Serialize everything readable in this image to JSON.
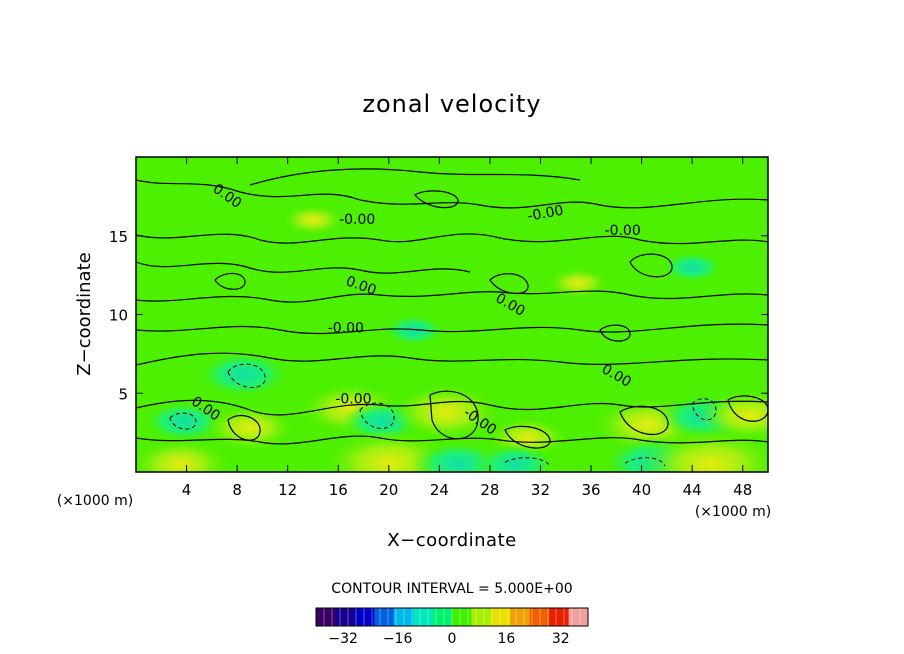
{
  "chart_data": {
    "type": "heatmap",
    "title": "zonal velocity",
    "xlabel": "X−coordinate",
    "ylabel": "Z−coordinate",
    "x_unit_left": "(×1000 m)",
    "x_unit_right": "(×1000 m)",
    "xlim": [
      0,
      50
    ],
    "ylim": [
      0,
      20
    ],
    "x_ticks": [
      4,
      8,
      12,
      16,
      20,
      24,
      28,
      32,
      36,
      40,
      44,
      48
    ],
    "y_ticks": [
      5,
      10,
      15
    ],
    "contour_interval_text": "CONTOUR INTERVAL = 5.000E+00",
    "contour_labels": [
      {
        "text": "0.00",
        "x": 7.2,
        "y": 17.5,
        "angle": 35
      },
      {
        "text": "-0.00",
        "x": 17.5,
        "y": 16.0,
        "angle": 0
      },
      {
        "text": "-0.00",
        "x": 32.4,
        "y": 16.4,
        "angle": -10
      },
      {
        "text": "-0.00",
        "x": 38.5,
        "y": 15.3,
        "angle": 0
      },
      {
        "text": "0.00",
        "x": 17.8,
        "y": 11.8,
        "angle": 20
      },
      {
        "text": "0.00",
        "x": 29.6,
        "y": 10.6,
        "angle": 30
      },
      {
        "text": "-0.00",
        "x": 16.6,
        "y": 9.1,
        "angle": 0
      },
      {
        "text": "0.00",
        "x": 38.0,
        "y": 6.1,
        "angle": 30
      },
      {
        "text": "-0.00",
        "x": 17.2,
        "y": 4.6,
        "angle": 0
      },
      {
        "text": "0.00",
        "x": 5.5,
        "y": 4.0,
        "angle": 35
      },
      {
        "text": "-0.00",
        "x": 27.2,
        "y": 3.2,
        "angle": 35
      }
    ],
    "features": [
      {
        "x": 8.5,
        "y": 6.2,
        "value": -5
      },
      {
        "x": 3.8,
        "y": 3.2,
        "value": -4
      },
      {
        "x": 9.0,
        "y": 2.8,
        "value": 5
      },
      {
        "x": 17.0,
        "y": 4.0,
        "value": 6
      },
      {
        "x": 19.5,
        "y": 3.2,
        "value": -4
      },
      {
        "x": 24.5,
        "y": 3.8,
        "value": 7
      },
      {
        "x": 31.0,
        "y": 2.2,
        "value": 4
      },
      {
        "x": 40.5,
        "y": 3.0,
        "value": 7
      },
      {
        "x": 45.0,
        "y": 3.5,
        "value": -5
      },
      {
        "x": 48.5,
        "y": 3.6,
        "value": 6
      },
      {
        "x": 3.5,
        "y": 0.5,
        "value": 6
      },
      {
        "x": 20.0,
        "y": 0.6,
        "value": 9
      },
      {
        "x": 25.5,
        "y": 0.5,
        "value": -5
      },
      {
        "x": 30.0,
        "y": 0.5,
        "value": -4
      },
      {
        "x": 41.0,
        "y": 0.6,
        "value": -6
      },
      {
        "x": 45.5,
        "y": 0.5,
        "value": 10
      },
      {
        "x": 22.0,
        "y": 9.0,
        "value": -2
      },
      {
        "x": 14.0,
        "y": 16.0,
        "value": 2
      },
      {
        "x": 35.0,
        "y": 12.0,
        "value": 2
      },
      {
        "x": 44.0,
        "y": 13.0,
        "value": -2
      }
    ],
    "colorbar": {
      "min": -40,
      "max": 40,
      "ticks": [
        -32,
        -16,
        0,
        16,
        32
      ],
      "colors": [
        "#3a0066",
        "#1a0090",
        "#0000c8",
        "#0060e0",
        "#00b8e8",
        "#00e8c0",
        "#00f070",
        "#40f000",
        "#a8f000",
        "#e8e000",
        "#f0a000",
        "#f06000",
        "#e82000",
        "#f0a0a0"
      ]
    }
  }
}
